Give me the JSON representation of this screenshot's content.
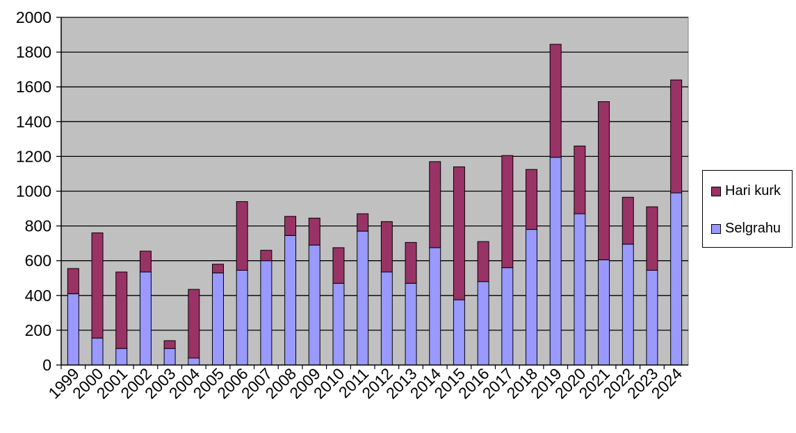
{
  "chart_data": {
    "type": "bar",
    "stacked": true,
    "title": "",
    "xlabel": "",
    "ylabel": "",
    "ylim": [
      0,
      2000
    ],
    "yticks": [
      0,
      200,
      400,
      600,
      800,
      1000,
      1200,
      1400,
      1600,
      1800,
      2000
    ],
    "grid": true,
    "legend_position": "right",
    "categories": [
      "1999",
      "2000",
      "2001",
      "2002",
      "2003",
      "2004",
      "2005",
      "2006",
      "2007",
      "2008",
      "2009",
      "2010",
      "2011",
      "2012",
      "2013",
      "2014",
      "2015",
      "2016",
      "2017",
      "2018",
      "2019",
      "2020",
      "2021",
      "2022",
      "2023",
      "2024"
    ],
    "series": [
      {
        "name": "Selgrahu",
        "color": "#9999ff",
        "values": [
          410,
          155,
          95,
          535,
          95,
          40,
          530,
          545,
          600,
          745,
          690,
          470,
          770,
          535,
          470,
          675,
          375,
          480,
          560,
          780,
          1195,
          870,
          605,
          695,
          545,
          990
        ]
      },
      {
        "name": "Hari kurk",
        "color": "#993366",
        "values": [
          145,
          605,
          440,
          120,
          45,
          395,
          50,
          395,
          60,
          110,
          155,
          205,
          100,
          290,
          235,
          495,
          765,
          230,
          645,
          345,
          650,
          390,
          910,
          270,
          365,
          650
        ]
      }
    ],
    "legend": [
      "Hari kurk",
      "Selgrahu"
    ],
    "plot_background": "#c0c0c0"
  }
}
